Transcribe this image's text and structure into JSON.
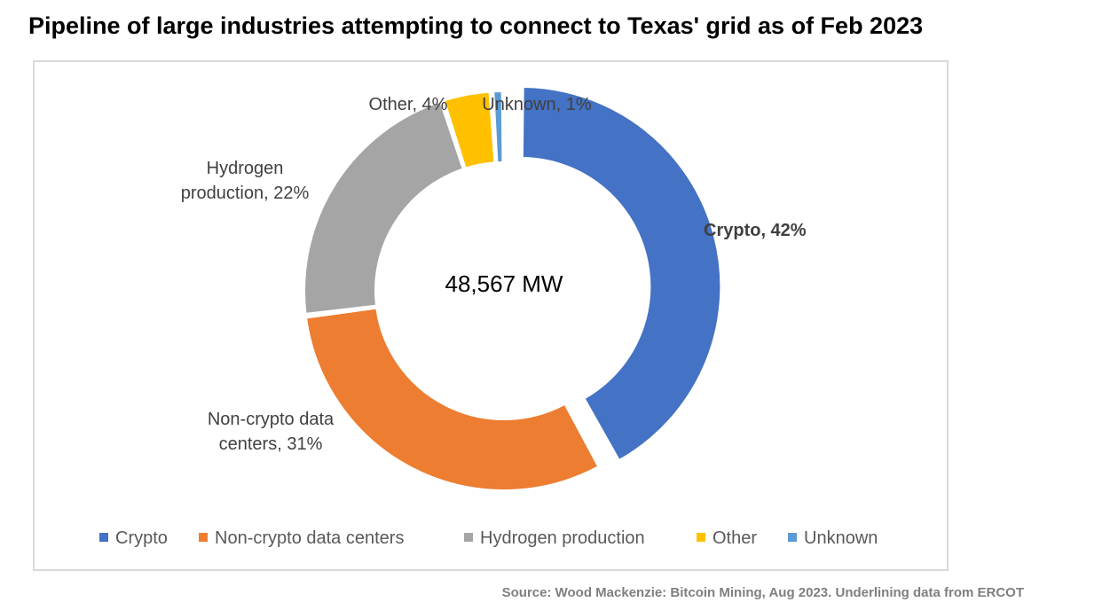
{
  "title": "Pipeline of large industries attempting to connect to Texas' grid as of Feb 2023",
  "source": "Source: Wood Mackenzie: Bitcoin Mining, Aug 2023. Underlining data from ERCOT",
  "chart_data": {
    "type": "pie",
    "variant": "doughnut",
    "center_label": "48,567 MW",
    "legend_position": "bottom",
    "categories": [
      "Crypto",
      "Non-crypto data centers",
      "Hydrogen production",
      "Other",
      "Unknown"
    ],
    "values": [
      42,
      31,
      22,
      4,
      1
    ],
    "unit": "%",
    "colors": [
      "#4472c4",
      "#ed7d31",
      "#a5a5a5",
      "#ffc000",
      "#5b9bd5"
    ],
    "exploded": [
      true,
      false,
      false,
      false,
      false
    ],
    "data_labels": [
      {
        "lines": [
          "Crypto, 42%"
        ],
        "bold": true
      },
      {
        "lines": [
          "Non-crypto data",
          "centers, 31%"
        ],
        "bold": false
      },
      {
        "lines": [
          "Hydrogen",
          "production, 22%"
        ],
        "bold": false
      },
      {
        "lines": [
          "Other, 4%"
        ],
        "bold": false
      },
      {
        "lines": [
          "Unknown, 1%"
        ],
        "bold": false
      }
    ]
  }
}
